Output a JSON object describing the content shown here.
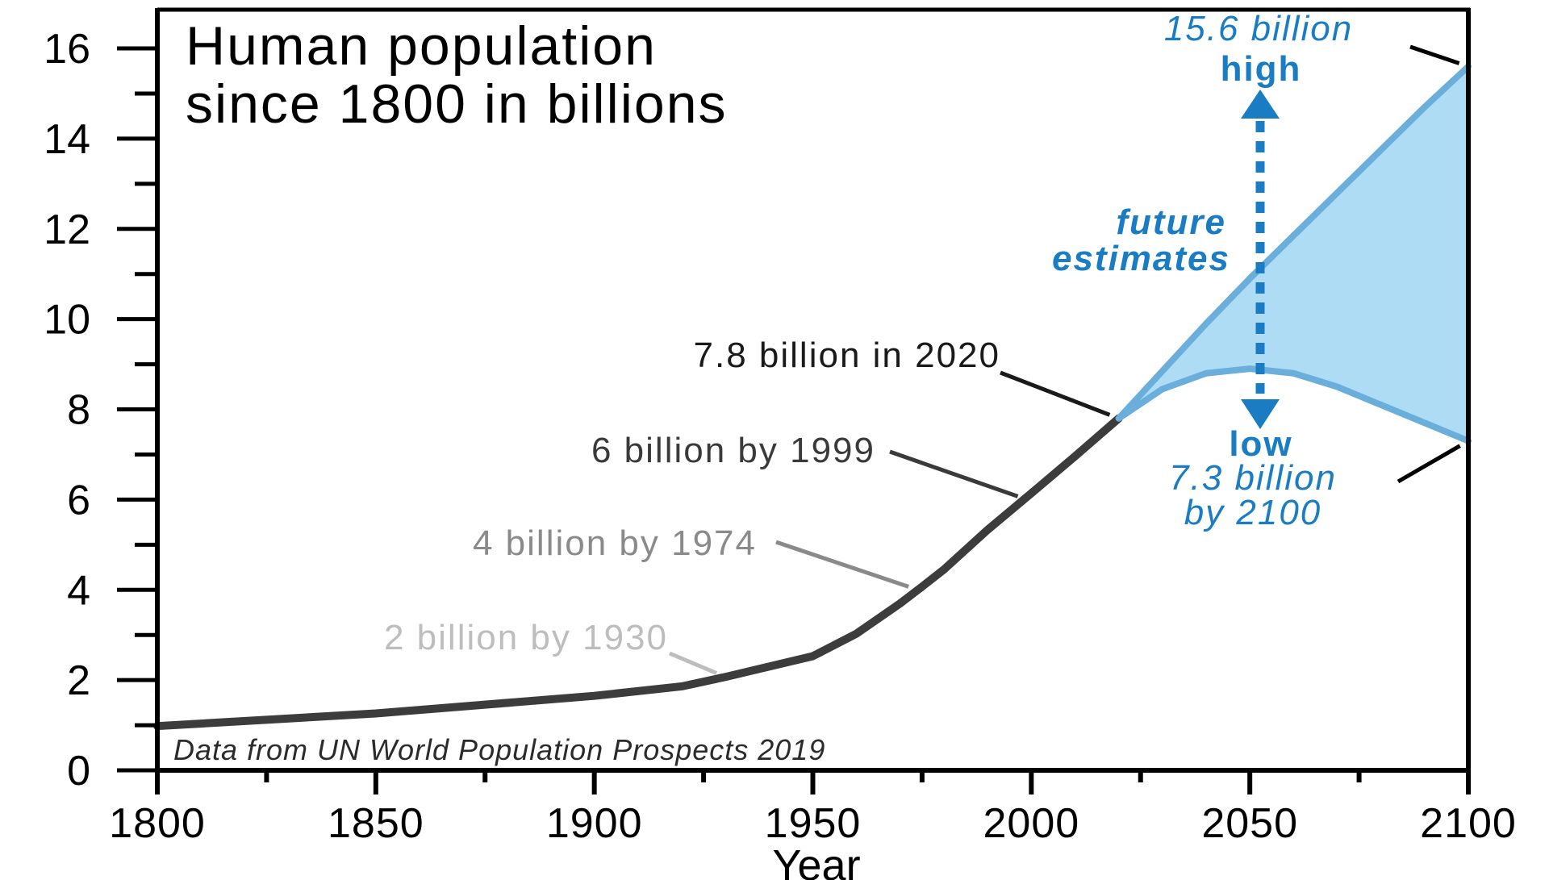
{
  "chart_data": {
    "type": "line",
    "title_lines": [
      "Human population",
      "since 1800 in billions"
    ],
    "xlabel": "Year",
    "ylabel": "",
    "xlim": [
      1800,
      2100
    ],
    "ylim": [
      0,
      16
    ],
    "x_ticks": [
      1800,
      1850,
      1900,
      1950,
      2000,
      2050,
      2100
    ],
    "y_ticks": [
      0,
      2,
      4,
      6,
      8,
      10,
      12,
      14,
      16
    ],
    "grid": false,
    "series": [
      {
        "key": "historical",
        "color": "#3c3c3c",
        "x": [
          1800,
          1850,
          1900,
          1920,
          1930,
          1950,
          1960,
          1970,
          1975,
          1980,
          1990,
          2000,
          2010,
          2020
        ],
        "y": [
          0.98,
          1.26,
          1.65,
          1.86,
          2.07,
          2.53,
          3.03,
          3.7,
          4.07,
          4.45,
          5.33,
          6.14,
          6.96,
          7.8
        ]
      },
      {
        "key": "high",
        "color": "#6aaedc",
        "x": [
          2020,
          2030,
          2040,
          2050,
          2060,
          2070,
          2080,
          2090,
          2100
        ],
        "y": [
          7.8,
          8.85,
          9.9,
          10.9,
          11.85,
          12.8,
          13.75,
          14.7,
          15.6
        ]
      },
      {
        "key": "low",
        "color": "#6aaedc",
        "x": [
          2020,
          2030,
          2040,
          2050,
          2060,
          2070,
          2080,
          2090,
          2100
        ],
        "y": [
          7.8,
          8.45,
          8.8,
          8.9,
          8.8,
          8.5,
          8.1,
          7.7,
          7.3
        ]
      }
    ],
    "fill_color": "#aedcf5",
    "annotations": [
      {
        "text": "7.8 billion in 2020",
        "color": "#1a1a1a"
      },
      {
        "text": "6 billion by 1999",
        "color": "#3a3a3a"
      },
      {
        "text": "4 billion by 1974",
        "color": "#8a8a8a"
      },
      {
        "text": "2 billion by 1930",
        "color": "#bdbdbd"
      }
    ],
    "high_label": {
      "value": "15.6 billion",
      "word": "high"
    },
    "low_label": {
      "word": "low",
      "value": "7.3 billion",
      "year": "by 2100"
    },
    "future_label": [
      "future",
      "estimates"
    ],
    "source_note": "Data from UN World Population Prospects 2019"
  }
}
